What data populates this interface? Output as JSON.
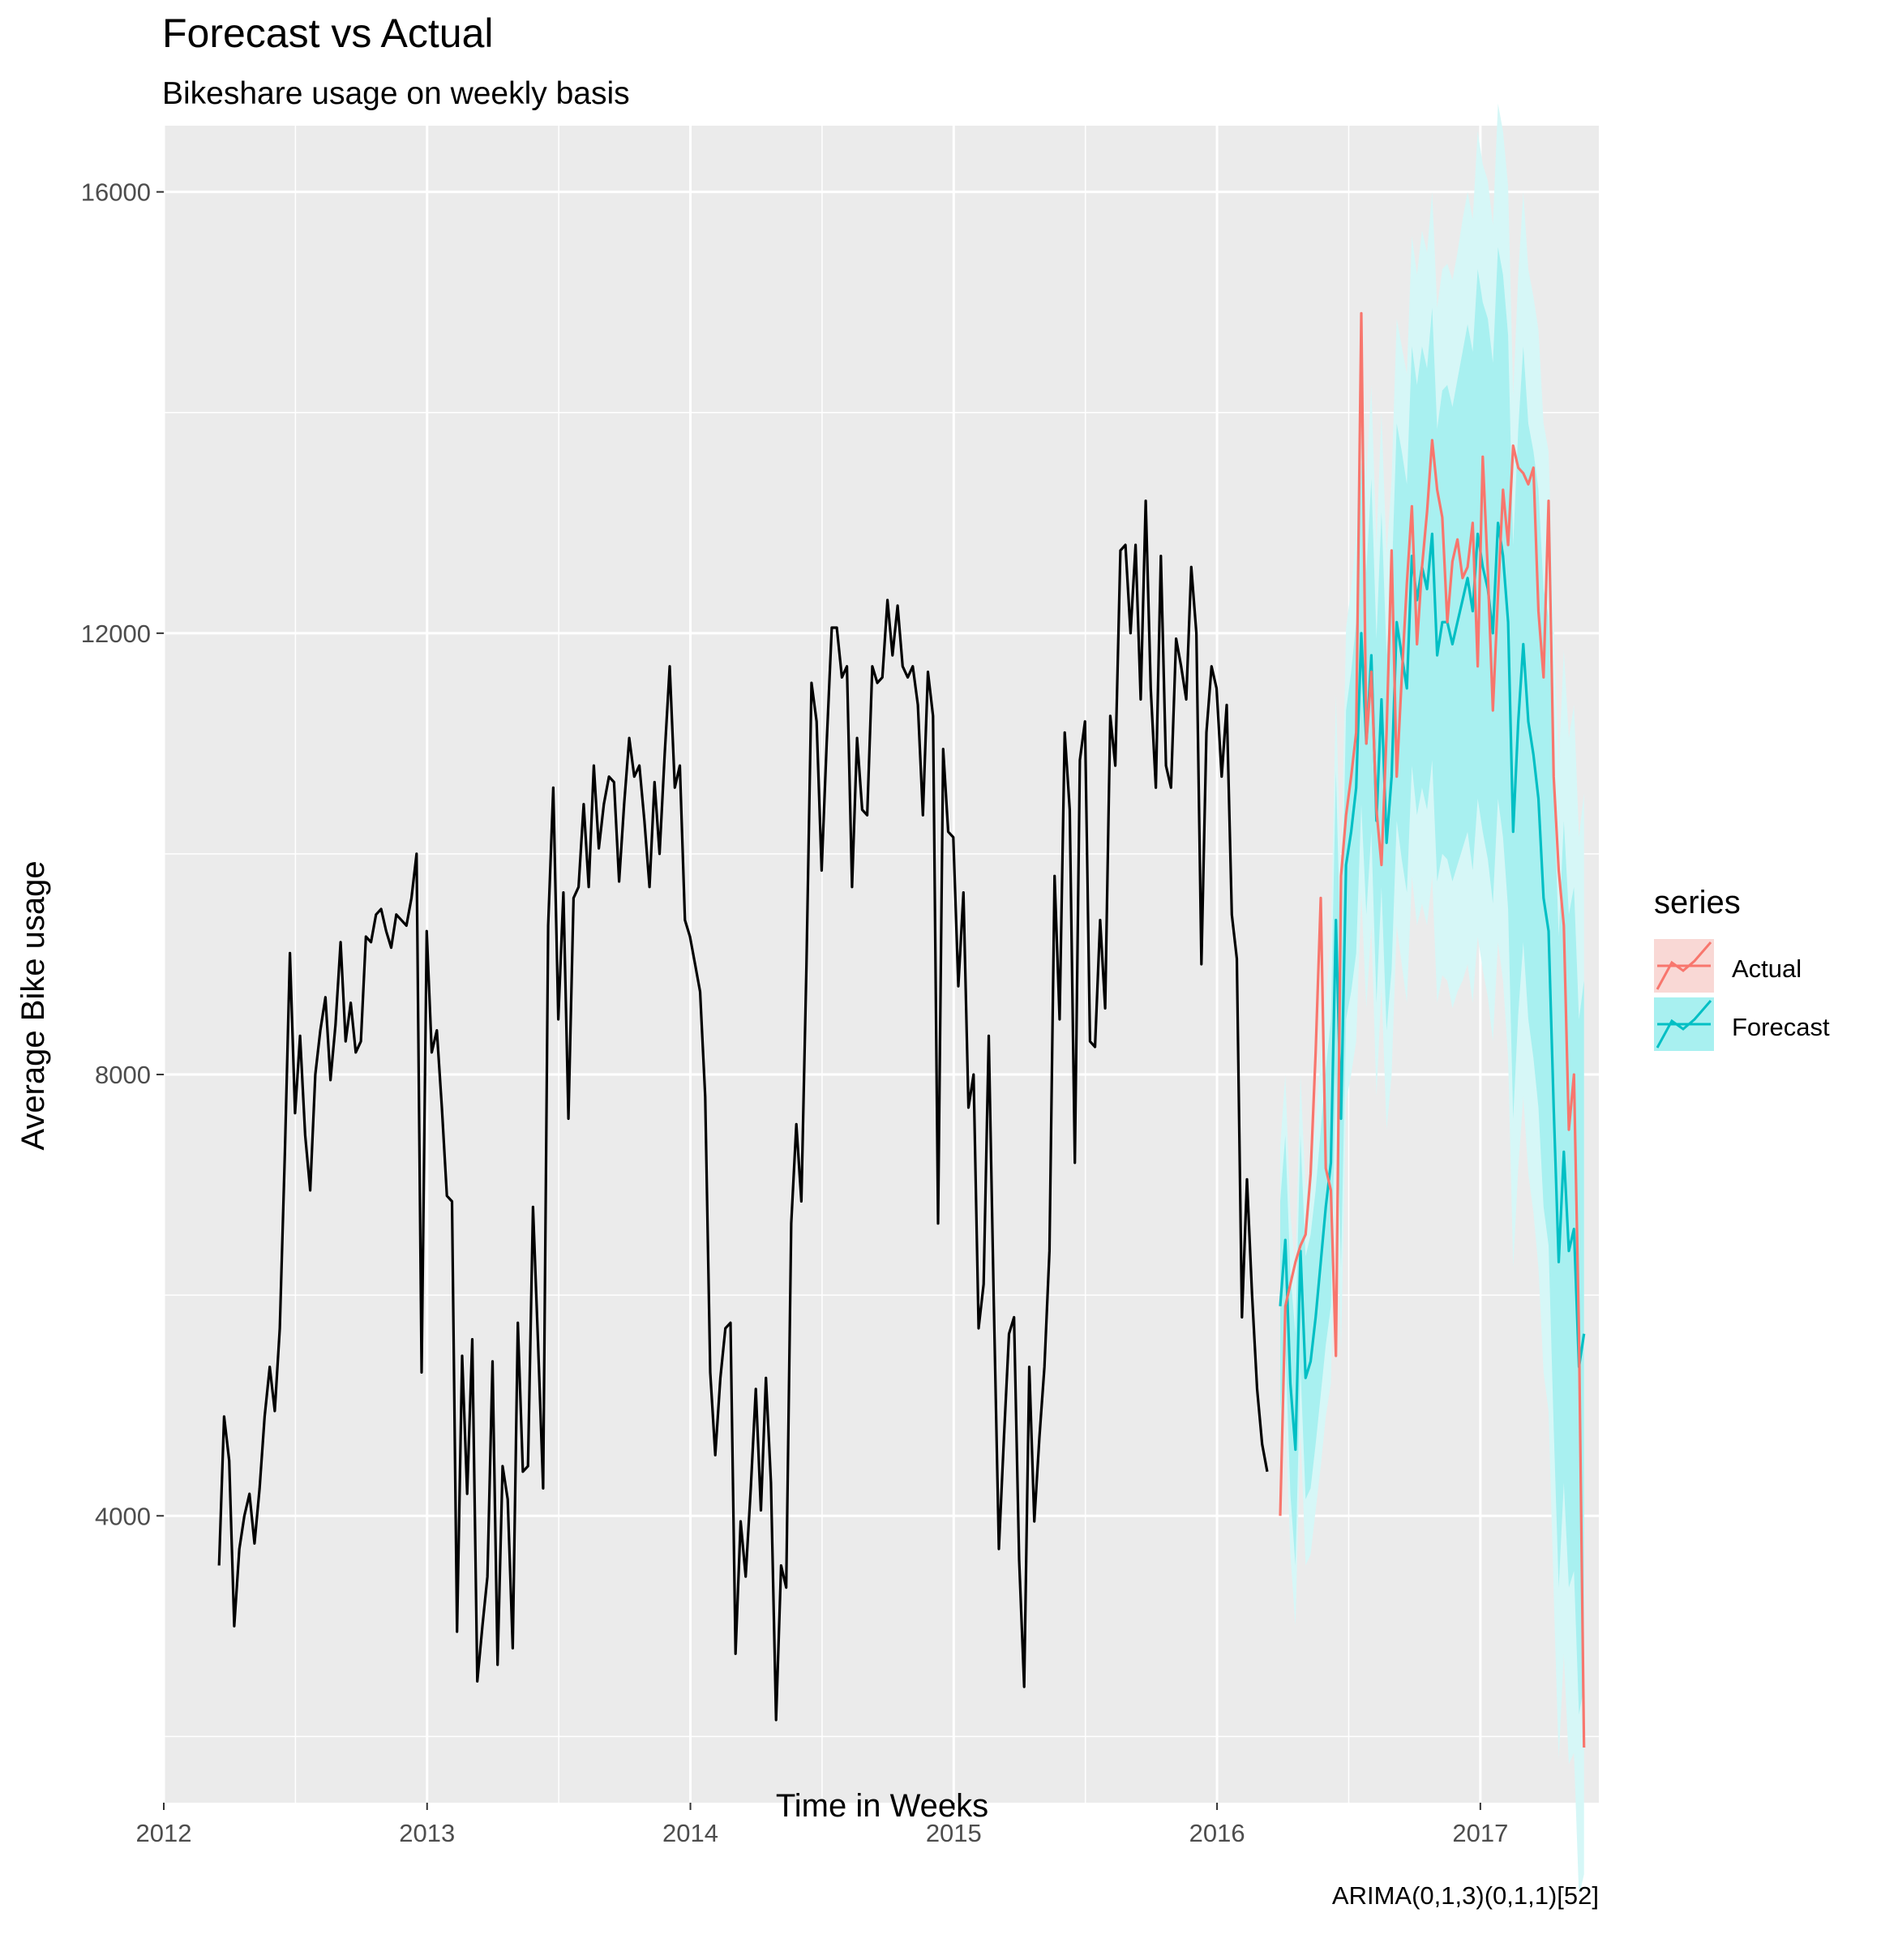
{
  "chart_data": {
    "type": "line",
    "title": "Forecast vs Actual",
    "subtitle": "Bikeshare usage on weekly basis",
    "xlabel": "Time in Weeks",
    "ylabel": "Average Bike usage",
    "caption": "ARIMA(0,1,3)(0,1,1)[52]",
    "xlim": [
      2012.0,
      2017.45
    ],
    "ylim": [
      1400,
      16600
    ],
    "x_ticks": [
      2012,
      2013,
      2014,
      2015,
      2016,
      2017
    ],
    "x_tick_labels": [
      "2012",
      "2013",
      "2014",
      "2015",
      "2016",
      "2017"
    ],
    "y_ticks": [
      4000,
      8000,
      12000,
      16000
    ],
    "y_tick_labels": [
      "4000",
      "8000",
      "12000",
      "16000"
    ],
    "grid": true,
    "legend": {
      "title": "series",
      "position": "right",
      "entries": [
        "Actual",
        "Forecast"
      ]
    },
    "colors": {
      "history": "#000000",
      "actual": "#F8766D",
      "forecast": "#00BFC4",
      "band80": "#A8F0F0",
      "band95": "#D6F7F7",
      "panel": "#EBEBEB",
      "grid": "#FFFFFF"
    },
    "history": {
      "start": 2012.21,
      "step": 0.01923,
      "values": [
        3550,
        4900,
        4500,
        3000,
        3700,
        4000,
        4200,
        3750,
        4250,
        4900,
        5350,
        4950,
        5700,
        7300,
        9100,
        7650,
        8350,
        7450,
        6950,
        8000,
        8400,
        8700,
        7950,
        8450,
        9200,
        8300,
        8650,
        8200,
        8300,
        9250,
        9200,
        9450,
        9500,
        9300,
        9150,
        9450,
        9400,
        9350,
        9600,
        10000,
        5300,
        9300,
        8200,
        8400,
        7700,
        6900,
        6850,
        2950,
        5450,
        4200,
        5600,
        2500,
        3000,
        3450,
        5400,
        2650,
        4450,
        4150,
        2800,
        5750,
        4400,
        4450,
        6800,
        5550,
        4250,
        9350,
        10600,
        8500,
        9650,
        7600,
        9600,
        9700,
        10450,
        9700,
        10800,
        10050,
        10450,
        10700,
        10650,
        9750,
        10450,
        11050,
        10700,
        10800,
        10300,
        9700,
        10650,
        10000,
        10900,
        11700,
        10600,
        10800,
        9400,
        9250,
        9000,
        8750,
        7800,
        5300,
        4550,
        5250,
        5700,
        5750,
        2750,
        3950,
        3450,
        4250,
        5150,
        4050,
        5250,
        4300,
        2150,
        3550,
        3350,
        6650,
        7550,
        6850,
        9000,
        11550,
        11200,
        9850,
        11000,
        12050,
        12050,
        11600,
        11700,
        9700,
        11050,
        10400,
        10350,
        11700,
        11550,
        11600,
        12300,
        11800,
        12250,
        11700,
        11600,
        11700,
        11350,
        10350,
        11650,
        11250,
        6650,
        10950,
        10200,
        10150,
        8800,
        9650,
        7700,
        8000,
        5700,
        6100,
        8350,
        5950,
        3700,
        4700,
        5650,
        5800,
        3600,
        2450,
        5350,
        3950,
        4700,
        5350,
        6400,
        9800,
        8500,
        11100,
        10400,
        7200,
        10850,
        11200,
        8300,
        8250,
        9400,
        8600,
        11250,
        10800,
        12750,
        12800,
        12000,
        12800,
        11400,
        13200,
        11500,
        10600,
        12700,
        10800,
        10600,
        11950,
        11700,
        11400,
        12600,
        12000,
        9000,
        11100,
        11700,
        11500,
        10700,
        11350,
        9450,
        9050,
        5800,
        7050,
        6000,
        5150,
        4650,
        4400
      ]
    },
    "forecast": {
      "start": 2016.24,
      "step": 0.01923,
      "values": [
        5900,
        6500,
        5200,
        4600,
        6400,
        5250,
        5400,
        5800,
        6300,
        6800,
        7200,
        9400,
        7600,
        9900,
        10200,
        10600,
        12000,
        11000,
        11800,
        10300,
        11400,
        10100,
        10700,
        12100,
        11800,
        11500,
        12700,
        12300,
        12600,
        12400,
        12900,
        11800,
        12100,
        12100,
        11900,
        12100,
        12300,
        12500,
        12200,
        12900,
        12600,
        12400,
        12000,
        13000,
        12700,
        12100,
        10200,
        11200,
        11900,
        11200,
        10900,
        10500,
        9600,
        9300,
        7700,
        6300,
        7300,
        6400,
        6600,
        5350,
        5650
      ]
    },
    "pi80": {
      "upper": [
        6850,
        7450,
        6200,
        5650,
        7450,
        6350,
        6550,
        6950,
        7500,
        8050,
        8500,
        10750,
        8950,
        11300,
        11650,
        12100,
        13550,
        12550,
        13400,
        11950,
        13100,
        11800,
        12450,
        13900,
        13650,
        13350,
        14600,
        14250,
        14600,
        14400,
        14950,
        13850,
        14200,
        14250,
        14050,
        14300,
        14550,
        14800,
        14550,
        15300,
        15000,
        14850,
        14450,
        15500,
        15250,
        14700,
        12800,
        13850,
        14600,
        13900,
        13650,
        13300,
        12400,
        12150,
        10600,
        9250,
        10300,
        9450,
        9700,
        8500,
        8850
      ],
      "lower": [
        4950,
        5550,
        4200,
        3550,
        5350,
        4150,
        4250,
        4650,
        5100,
        5550,
        5900,
        8050,
        6250,
        8500,
        8750,
        9100,
        10450,
        9450,
        10200,
        8650,
        9700,
        8400,
        8950,
        10300,
        9950,
        9650,
        10800,
        10350,
        10600,
        10400,
        10850,
        9750,
        10000,
        9950,
        9750,
        9900,
        10050,
        10200,
        9850,
        10500,
        10200,
        9950,
        9550,
        10500,
        10150,
        9500,
        7600,
        8550,
        9200,
        8500,
        8150,
        7700,
        6800,
        6450,
        4800,
        3350,
        4300,
        3350,
        3500,
        2200,
        2450
      ]
    },
    "pi95": {
      "upper": [
        7350,
        8000,
        6750,
        6200,
        8000,
        6950,
        7150,
        7550,
        8150,
        8700,
        9200,
        11450,
        9700,
        12050,
        12400,
        12900,
        14350,
        13400,
        14250,
        12800,
        14000,
        12700,
        13400,
        14850,
        14600,
        14350,
        15600,
        15250,
        15650,
        15450,
        16000,
        14950,
        15300,
        15350,
        15200,
        15450,
        15750,
        16000,
        15750,
        16550,
        16250,
        16100,
        15700,
        16800,
        16550,
        16050,
        14150,
        15250,
        16000,
        15300,
        15050,
        14750,
        13900,
        13650,
        12100,
        10800,
        11850,
        11050,
        11350,
        10150,
        10550
      ],
      "lower": [
        4450,
        5000,
        3650,
        3000,
        4800,
        3550,
        3650,
        4050,
        4450,
        4900,
        5200,
        7350,
        5500,
        7750,
        8000,
        8300,
        9650,
        8600,
        9350,
        7800,
        8800,
        7500,
        8000,
        9350,
        9000,
        8650,
        9800,
        9350,
        9550,
        9350,
        9800,
        8650,
        8900,
        8850,
        8600,
        8750,
        8850,
        9000,
        8650,
        9250,
        8950,
        8700,
        8300,
        9200,
        8850,
        8150,
        6250,
        7150,
        7800,
        7100,
        6750,
        6250,
        5300,
        4950,
        3300,
        1800,
        2750,
        1750,
        1850,
        550,
        750
      ]
    },
    "actual": {
      "start": 2016.24,
      "step": 0.01923,
      "values": [
        4000,
        5900,
        6100,
        6300,
        6450,
        6550,
        7100,
        8200,
        9600,
        7150,
        6950,
        5450,
        9800,
        10350,
        10700,
        11100,
        14900,
        11000,
        11650,
        10400,
        9900,
        11100,
        12750,
        10700,
        11600,
        12450,
        13150,
        11900,
        12600,
        13100,
        13750,
        13300,
        13050,
        12100,
        12650,
        12850,
        12500,
        12600,
        13000,
        11700,
        13600,
        12550,
        11300,
        12350,
        13300,
        12800,
        13700,
        13500,
        13450,
        13350,
        13500,
        12200,
        11600,
        13200,
        10700,
        9850,
        9350,
        7500,
        8000,
        5650,
        1900
      ]
    }
  }
}
